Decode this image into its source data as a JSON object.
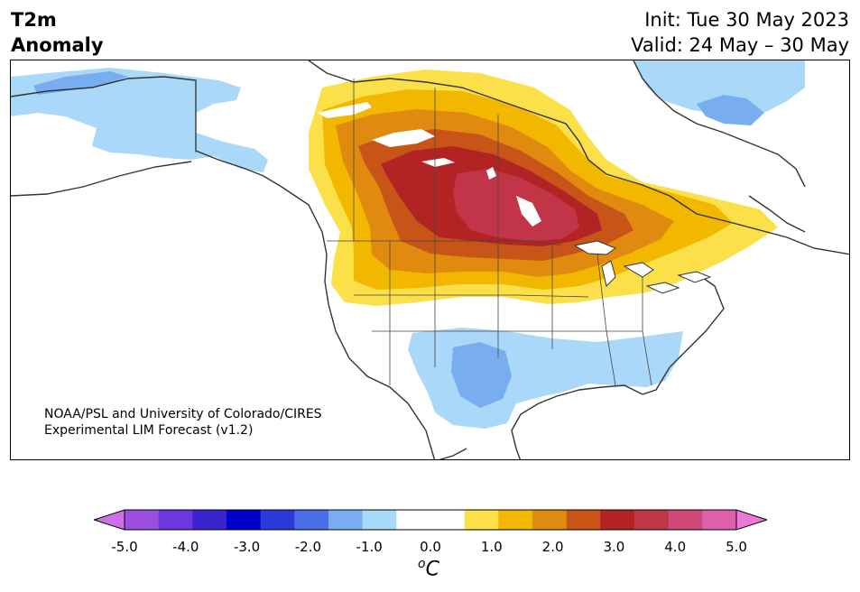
{
  "title": {
    "variable_line1": "T2m",
    "variable_line2": "Anomaly",
    "init": "Init: Tue 30 May 2023",
    "valid": "Valid: 24 May – 30 May"
  },
  "credit": {
    "line1": "NOAA/PSL and University of Colorado/CIRES",
    "line2": "Experimental LIM Forecast (v1.2)"
  },
  "colorbar": {
    "unit_base": "C",
    "unit_prefix": "o",
    "ticks": [
      "-5.0",
      "-4.0",
      "-3.0",
      "-2.0",
      "-1.0",
      "0.0",
      "1.0",
      "2.0",
      "3.0",
      "4.0",
      "5.0"
    ],
    "colors": [
      "#d070e8",
      "#9a4ee0",
      "#6a38dc",
      "#3a22cc",
      "#0000cc",
      "#2a3ad8",
      "#4a6ee8",
      "#78aef0",
      "#aad8f8",
      "#ffffff",
      "#ffffff",
      "#fbe04a",
      "#f2b800",
      "#e08a10",
      "#c85418",
      "#b22424",
      "#c23448",
      "#d04878",
      "#de60a8",
      "#ec78d8"
    ]
  },
  "map": {
    "region": "North America",
    "features": [
      "warm-anomaly-northern-plains",
      "cold-anomaly-southern-plains",
      "cold-anomaly-alaska",
      "cold-anomaly-quebec"
    ]
  }
}
